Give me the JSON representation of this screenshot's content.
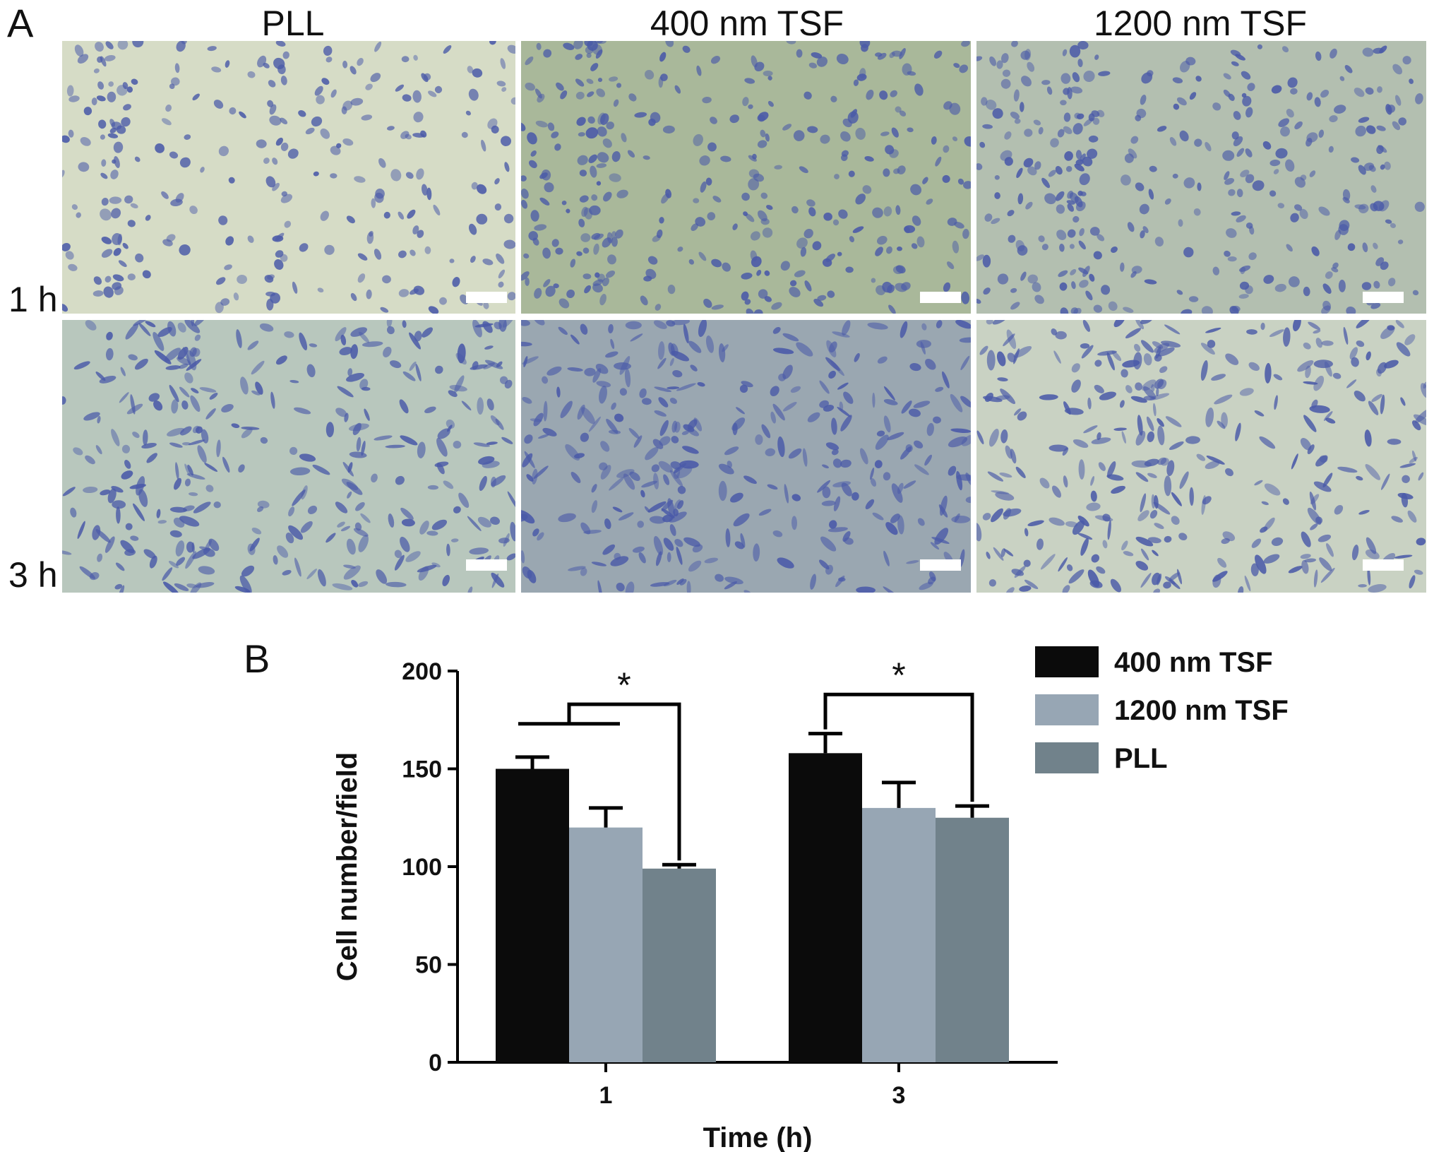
{
  "panel_a": {
    "letter": "A",
    "columns": [
      "PLL",
      "400 nm TSF",
      "1200 nm TSF"
    ],
    "rows": [
      "1 h",
      "3 h"
    ],
    "background_colors": {
      "PLL_1h": "#d6dcc6",
      "400_1h": "#a9b89a",
      "1200_1h": "#b3bfb0",
      "PLL_3h": "#b8c7bd",
      "400_3h": "#9aa7b1",
      "1200_3h": "#c9d2c3"
    },
    "cell_color": "#4a5aa8"
  },
  "panel_b": {
    "letter": "B",
    "legend": [
      {
        "label": "400 nm TSF",
        "color": "#0b0b0b"
      },
      {
        "label": "1200 nm TSF",
        "color": "#97a6b4"
      },
      {
        "label": "PLL",
        "color": "#71828b"
      }
    ],
    "significance_marks": [
      "*",
      "*"
    ]
  },
  "chart_data": {
    "type": "bar",
    "categories": [
      "1",
      "3"
    ],
    "series": [
      {
        "name": "400 nm TSF",
        "values": [
          150,
          158
        ],
        "errors": [
          6,
          10
        ]
      },
      {
        "name": "1200 nm TSF",
        "values": [
          120,
          130
        ],
        "errors": [
          10,
          13
        ]
      },
      {
        "name": "PLL",
        "values": [
          99,
          125
        ],
        "errors": [
          2,
          6
        ]
      }
    ],
    "xlabel": "Time (h)",
    "ylabel": "Cell number/field",
    "ylim": [
      0,
      200
    ],
    "yticks": [
      "0",
      "50",
      "100",
      "150",
      "200"
    ],
    "legend_position": "top-right",
    "grid": false
  }
}
